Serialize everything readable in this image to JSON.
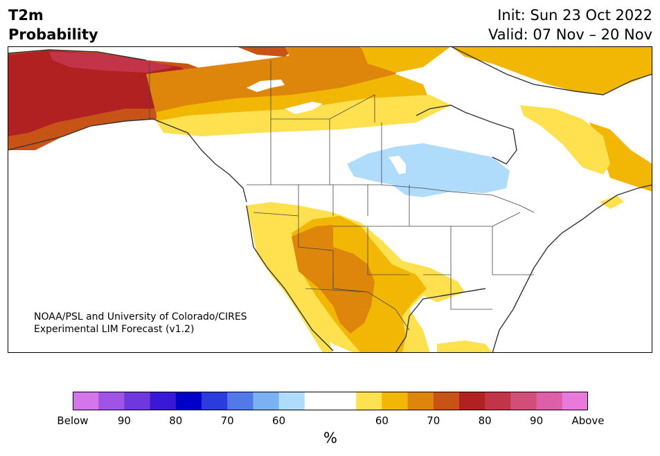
{
  "header": {
    "title_line1": "T2m",
    "title_line2": "Probability",
    "init": "Init: Sun 23 Oct 2022",
    "valid": "Valid: 07 Nov – 20 Nov"
  },
  "credit": {
    "line1": "NOAA/PSL and University of Colorado/CIRES",
    "line2": "Experimental LIM Forecast (v1.2)"
  },
  "colorbar": {
    "unit": "%",
    "colors": [
      "#d475ec",
      "#9e55e6",
      "#6e38dc",
      "#3a19d6",
      "#0000c9",
      "#2a3cdc",
      "#5278ea",
      "#79b1f2",
      "#aedcfa",
      "#ffffff",
      "#ffffff",
      "#ffe04f",
      "#f2b705",
      "#de860c",
      "#c75317",
      "#b22122",
      "#c23448",
      "#d04e78",
      "#dd5fa9",
      "#e87adb"
    ],
    "tick_labels": [
      "Below",
      "90",
      "80",
      "70",
      "60",
      "60",
      "70",
      "80",
      "90",
      "Above"
    ]
  },
  "legend_colors": {
    "cold_60": "#aedcfa",
    "warm_60": "#ffe04f",
    "warm_65": "#f2b705",
    "warm_70": "#de860c",
    "warm_75": "#c75317",
    "warm_80": "#b22122",
    "warm_85": "#c23448"
  }
}
